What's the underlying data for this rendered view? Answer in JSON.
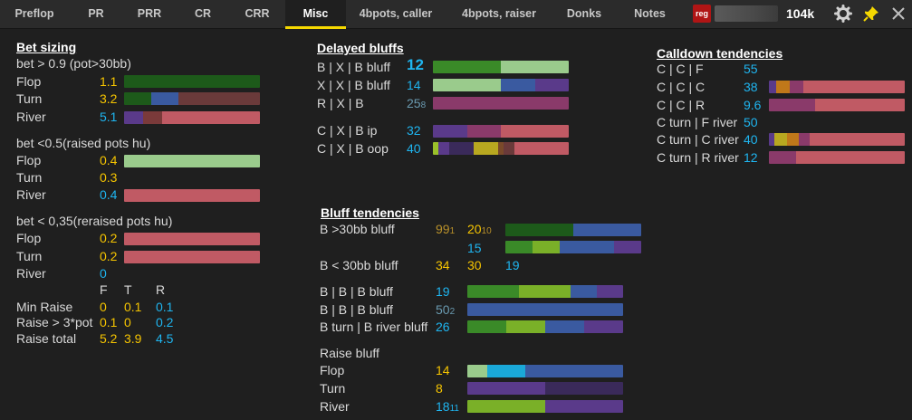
{
  "tabs": [
    {
      "label": "Preflop",
      "active": false
    },
    {
      "label": "PR",
      "active": false
    },
    {
      "label": "PRR",
      "active": false
    },
    {
      "label": "CR",
      "active": false
    },
    {
      "label": "CRR",
      "active": false
    },
    {
      "label": "Misc",
      "active": true
    },
    {
      "label": "4bpots, caller",
      "active": false
    },
    {
      "label": "4bpots, raiser",
      "active": false
    },
    {
      "label": "Donks",
      "active": false
    },
    {
      "label": "Notes",
      "active": false
    }
  ],
  "player": {
    "badge": "reg",
    "stack": "104k"
  },
  "icons": {
    "settings": "gear-icon",
    "pin": "pin-icon",
    "close": "close-icon"
  },
  "colors": {
    "accent": "#f5d800",
    "yellow_value": "#f5c400",
    "blue_value": "#1fb5f0"
  },
  "bet_sizing": {
    "title": "Bet sizing",
    "g1": {
      "label": "bet > 0.9 (pot>30bb)",
      "flop": "Flop",
      "flop_v": "1.1",
      "turn": "Turn",
      "turn_v": "3.2",
      "river": "River",
      "river_v": "5.1"
    },
    "g2": {
      "label": "bet <0.5(raised pots hu)",
      "flop": "Flop",
      "flop_v": "0.4",
      "turn": "Turn",
      "turn_v": "0.3",
      "river": "River",
      "river_v": "0.4"
    },
    "g3": {
      "label": "bet < 0,35(reraised pots hu)",
      "flop": "Flop",
      "flop_v": "0.2",
      "turn": "Turn",
      "turn_v": "0.2",
      "river": "River",
      "river_v": "0"
    },
    "cols": {
      "f": "F",
      "t": "T",
      "r": "R"
    },
    "min_raise": {
      "label": "Min Raise",
      "f": "0",
      "t": "0.1",
      "r": "0.1"
    },
    "raise_3pot": {
      "label": "Raise > 3*pot",
      "f": "0.1",
      "t": "0",
      "r": "0.2"
    },
    "raise_total": {
      "label": "Raise total",
      "f": "5.2",
      "t": "3.9",
      "r": "4.5"
    }
  },
  "delayed_bluffs": {
    "title": "Delayed bluffs",
    "rows": [
      {
        "label": "B | X | B bluff",
        "value": "12",
        "sub": ""
      },
      {
        "label": "X | X | B bluff",
        "value": "14",
        "sub": ""
      },
      {
        "label": "R | X | B",
        "value": "25",
        "sub": "8"
      },
      {
        "label": "C | X | B ip",
        "value": "32",
        "sub": ""
      },
      {
        "label": "C | X | B oop",
        "value": "40",
        "sub": ""
      }
    ]
  },
  "calldown": {
    "title": "Calldown tendencies",
    "rows": [
      {
        "label": "C | C | F",
        "value": "55"
      },
      {
        "label": "C | C | C",
        "value": "38"
      },
      {
        "label": "C | C | R",
        "value": "9.6"
      },
      {
        "label": "C turn | F river",
        "value": "50"
      },
      {
        "label": "C turn | C river",
        "value": "40"
      },
      {
        "label": "C turn | R river",
        "value": "12"
      }
    ]
  },
  "bluff_tendencies": {
    "title": "Bluff tendencies",
    "b30_label": "B >30bb bluff",
    "b30_v1": "99",
    "b30_v1_sub": "1",
    "b30_v2": "20",
    "b30_v2_sub": "10",
    "b30_v3": "15",
    "blt30_label": "B < 30bb bluff",
    "blt30_v1": "34",
    "blt30_v2": "30",
    "blt30_v3": "19",
    "bbb_label": "B | B | B bluff",
    "bbb_v": "19",
    "bbb2_label": "B | B | B bluff",
    "bbb2_v": "50",
    "bbb2_sub": "2",
    "btbr_label": "B turn | B river bluff",
    "btbr_v": "26",
    "raise_label": "Raise bluff",
    "flop": "Flop",
    "flop_v": "14",
    "turn": "Turn",
    "turn_v": "8",
    "river": "River",
    "river_v": "18",
    "river_sub": "11"
  }
}
